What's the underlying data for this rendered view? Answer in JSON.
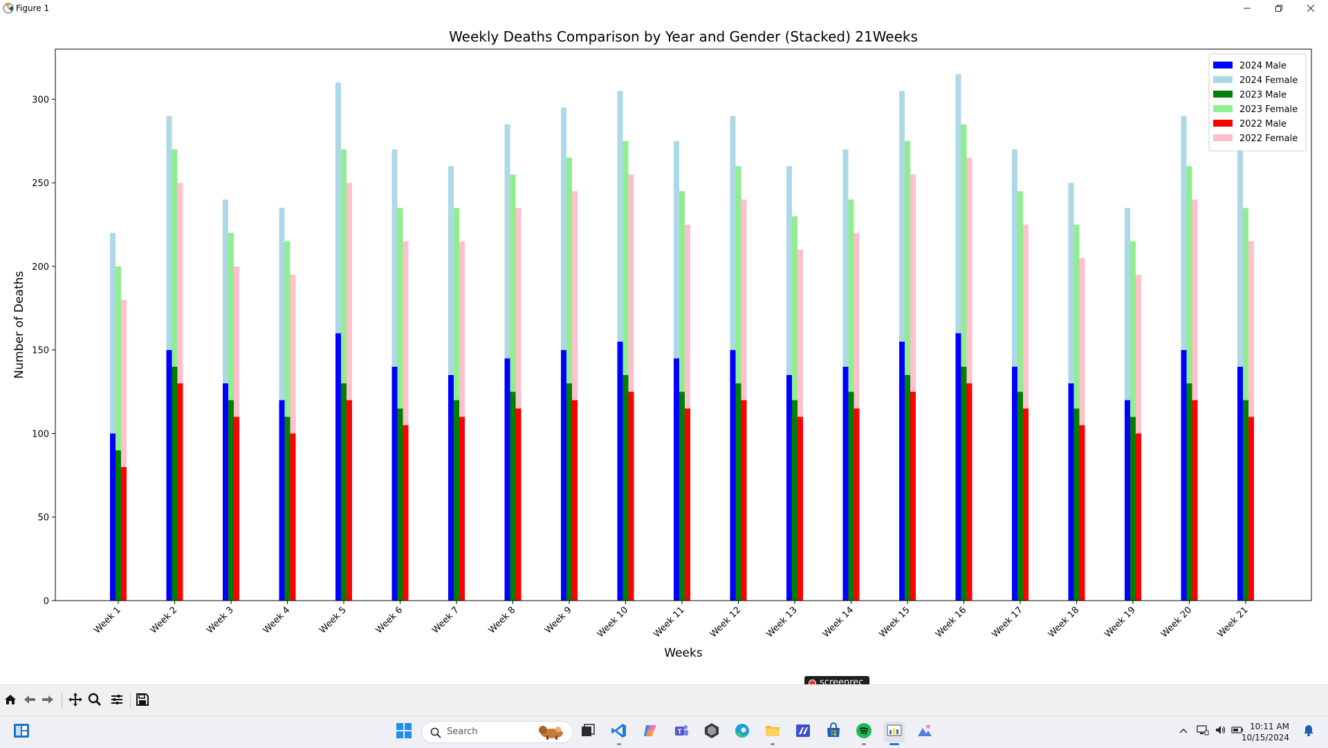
{
  "window": {
    "title": "Figure 1",
    "minimize_icon": "minimize-icon",
    "restore_icon": "restore-icon",
    "close_icon": "close-icon"
  },
  "chart_data": {
    "type": "bar",
    "stacked": true,
    "title": "Weekly Deaths Comparison by Year and Gender (Stacked) 21Weeks",
    "xlabel": "Weeks",
    "ylabel": "Number of Deaths",
    "ylim": [
      0,
      330
    ],
    "yticks": [
      0,
      50,
      100,
      150,
      200,
      250,
      300
    ],
    "categories": [
      "Week 1",
      "Week 2",
      "Week 3",
      "Week 4",
      "Week 5",
      "Week 6",
      "Week 7",
      "Week 8",
      "Week 9",
      "Week 10",
      "Week 11",
      "Week 12",
      "Week 13",
      "Week 14",
      "Week 15",
      "Week 16",
      "Week 17",
      "Week 18",
      "Week 19",
      "Week 20",
      "Week 21"
    ],
    "legend_position": "top-right",
    "grid": false,
    "groups": [
      {
        "year": "2024",
        "male": {
          "name": "2024 Male",
          "color": "#0000ff",
          "values": [
            100,
            150,
            130,
            120,
            160,
            140,
            135,
            145,
            150,
            155,
            145,
            150,
            135,
            140,
            155,
            160,
            140,
            130,
            120,
            150,
            140
          ]
        },
        "female": {
          "name": "2024 Female",
          "color": "#add8e6",
          "values": [
            120,
            140,
            110,
            115,
            150,
            130,
            125,
            140,
            145,
            150,
            130,
            140,
            125,
            130,
            150,
            155,
            130,
            120,
            115,
            140,
            130
          ]
        }
      },
      {
        "year": "2023",
        "male": {
          "name": "2023 Male",
          "color": "#008000",
          "values": [
            90,
            140,
            120,
            110,
            130,
            115,
            120,
            125,
            130,
            135,
            125,
            130,
            120,
            125,
            135,
            140,
            125,
            115,
            110,
            130,
            120
          ]
        },
        "female": {
          "name": "2023 Female",
          "color": "#90ee90",
          "values": [
            110,
            130,
            100,
            105,
            140,
            120,
            115,
            130,
            135,
            140,
            120,
            130,
            110,
            115,
            140,
            145,
            120,
            110,
            105,
            130,
            115
          ]
        }
      },
      {
        "year": "2022",
        "male": {
          "name": "2022 Male",
          "color": "#ff0000",
          "values": [
            80,
            130,
            110,
            100,
            120,
            105,
            110,
            115,
            120,
            125,
            115,
            120,
            110,
            115,
            125,
            130,
            115,
            105,
            100,
            120,
            110
          ]
        },
        "female": {
          "name": "2022 Female",
          "color": "#ffc0cb",
          "values": [
            100,
            120,
            90,
            95,
            130,
            110,
            105,
            120,
            125,
            130,
            110,
            120,
            100,
            105,
            130,
            135,
            110,
            100,
            95,
            120,
            105
          ]
        }
      }
    ],
    "legend": [
      "2024 Male",
      "2024 Female",
      "2023 Male",
      "2023 Female",
      "2022 Male",
      "2022 Female"
    ]
  },
  "watermark": {
    "text": "screenrec"
  },
  "toolbar": {
    "buttons": [
      "home-icon",
      "back-icon",
      "forward-icon",
      "pan-icon",
      "zoom-icon",
      "configure-icon",
      "save-icon"
    ]
  },
  "taskbar": {
    "search_placeholder": "Search",
    "time": "10:11 AM",
    "date": "10/15/2024"
  }
}
